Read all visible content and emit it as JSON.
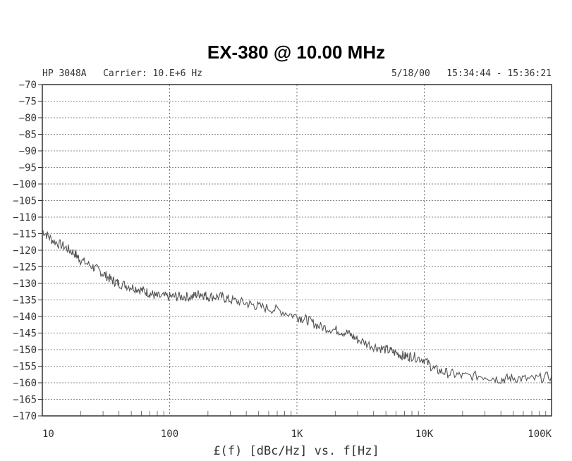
{
  "chart_data": {
    "type": "line",
    "title": "EX-380 @ 10.00 MHz",
    "header_left": "HP 3048A   Carrier: 10.E+6 Hz",
    "header_right": "5/18/00   15:34:44 - 15:36:21",
    "xlabel": "£(f) [dBc/Hz] vs. f[Hz]",
    "ylabel": "",
    "x_scale": "log",
    "xlim": [
      10,
      100000
    ],
    "ylim": [
      -170,
      -70
    ],
    "x_tick_values": [
      10,
      100,
      1000,
      10000,
      100000
    ],
    "x_tick_labels": [
      "10",
      "100",
      "1K",
      "10K",
      "100K"
    ],
    "y_ticks": [
      -70,
      -75,
      -80,
      -85,
      -90,
      -95,
      -100,
      -105,
      -110,
      -115,
      -120,
      -125,
      -130,
      -135,
      -140,
      -145,
      -150,
      -155,
      -160,
      -165,
      -170
    ],
    "grid": true,
    "line_color": "#555555",
    "grid_color": "#666666",
    "series": [
      {
        "x": [
          10,
          12,
          15,
          18,
          20,
          25,
          30,
          35,
          40,
          50,
          60,
          70,
          80,
          100,
          120,
          150,
          175,
          200,
          250,
          300,
          400,
          500,
          700,
          1000,
          1200,
          1500,
          2000,
          2500,
          3000,
          4000,
          5000,
          6000,
          7000,
          8000,
          10000,
          12000,
          15000,
          20000,
          30000,
          40000,
          50000,
          70000,
          100000
        ],
        "y": [
          -114,
          -117,
          -119,
          -121,
          -123,
          -125,
          -127,
          -129,
          -130,
          -131,
          -132,
          -133,
          -134,
          -134,
          -134,
          -134,
          -133,
          -134,
          -134,
          -135,
          -136,
          -137,
          -138,
          -140,
          -141,
          -143,
          -144,
          -145,
          -147,
          -149,
          -150,
          -151,
          -152,
          -152,
          -153,
          -156,
          -157,
          -158,
          -158,
          -159,
          -158.5,
          -159,
          -158
        ]
      }
    ]
  }
}
